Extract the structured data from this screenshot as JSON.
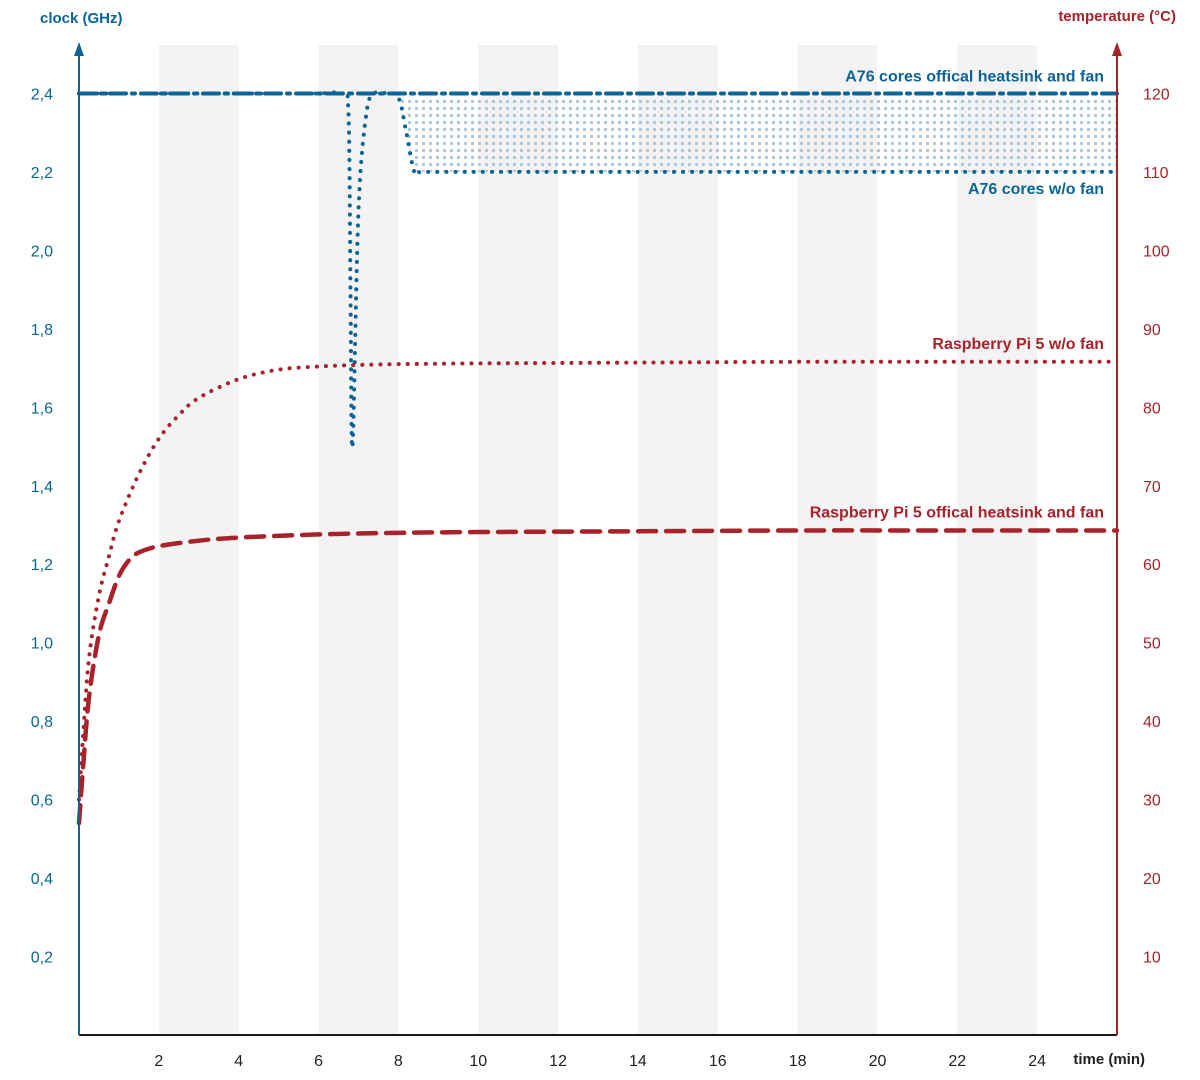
{
  "chart_data": {
    "type": "line",
    "grid": "alternating vertical bands",
    "colors": {
      "clock": "#0b6494",
      "clock_fill": "#a9c6d8",
      "temperature": "#a8222b",
      "band": "#f3f3f3"
    },
    "x_axis": {
      "label": "time (min)",
      "range": [
        0,
        26
      ],
      "ticks": [
        2,
        4,
        6,
        8,
        10,
        12,
        14,
        16,
        18,
        20,
        22,
        24
      ],
      "tick_labels": [
        "2",
        "4",
        "6",
        "8",
        "10",
        "12",
        "14",
        "16",
        "18",
        "20",
        "22",
        "24"
      ],
      "shaded_bands": [
        [
          2,
          4
        ],
        [
          6,
          8
        ],
        [
          10,
          12
        ],
        [
          14,
          16
        ],
        [
          18,
          20
        ],
        [
          22,
          24
        ]
      ]
    },
    "y_left": {
      "label": "clock (GHz)",
      "range": [
        0,
        2.6
      ],
      "ticks": [
        0.2,
        0.4,
        0.6,
        0.8,
        1.0,
        1.2,
        1.4,
        1.6,
        1.8,
        2.0,
        2.2,
        2.4
      ],
      "tick_labels": [
        "0,2",
        "0,4",
        "0,6",
        "0,8",
        "1,0",
        "1,2",
        "1,4",
        "1,6",
        "1,8",
        "2,0",
        "2,2",
        "2,4"
      ]
    },
    "y_right": {
      "label": "temperature (°C)",
      "range": [
        0,
        130
      ],
      "ticks": [
        10,
        20,
        30,
        40,
        50,
        60,
        70,
        80,
        90,
        100,
        110,
        120
      ],
      "tick_labels": [
        "10",
        "20",
        "30",
        "40",
        "50",
        "60",
        "70",
        "80",
        "90",
        "100",
        "110",
        "120"
      ]
    },
    "series": [
      {
        "name": "A76 cores offical heatsink and fan",
        "axis": "left",
        "style": "dash-dot",
        "x": [
          0,
          1,
          2,
          4,
          6,
          8,
          10,
          12,
          14,
          16,
          18,
          20,
          22,
          24,
          26
        ],
        "y": [
          2.4,
          2.4,
          2.4,
          2.4,
          2.4,
          2.4,
          2.4,
          2.4,
          2.4,
          2.4,
          2.4,
          2.4,
          2.4,
          2.4,
          2.4
        ]
      },
      {
        "name": "A76 cores w/o fan",
        "axis": "left",
        "style": "dotted",
        "x": [
          0,
          2,
          4,
          6,
          6.6,
          6.75,
          6.8,
          6.85,
          7.0,
          7.2,
          7.4,
          7.7,
          8.0,
          8.2,
          8.4,
          8.6,
          10,
          14,
          18,
          22,
          26
        ],
        "y": [
          2.4,
          2.4,
          2.4,
          2.4,
          2.4,
          2.35,
          1.9,
          1.5,
          2.1,
          2.35,
          2.4,
          2.4,
          2.39,
          2.3,
          2.2,
          2.2,
          2.2,
          2.2,
          2.2,
          2.2,
          2.2
        ]
      },
      {
        "name": "Raspberry Pi 5 w/o fan",
        "axis": "right",
        "style": "dotted",
        "x": [
          0,
          0.1,
          0.25,
          0.5,
          0.75,
          1,
          1.5,
          2,
          2.5,
          3,
          4,
          5,
          6,
          7,
          8,
          10,
          14,
          18,
          22,
          26
        ],
        "y": [
          30,
          38,
          48,
          56,
          61,
          65.5,
          71.5,
          76,
          79,
          81.2,
          83.6,
          84.8,
          85.2,
          85.4,
          85.5,
          85.6,
          85.7,
          85.8,
          85.8,
          85.8
        ]
      },
      {
        "name": "Raspberry Pi 5 offical heatsink and fan",
        "axis": "right",
        "style": "dashed",
        "x": [
          0,
          0.1,
          0.25,
          0.5,
          0.75,
          1,
          1.25,
          1.5,
          2,
          3,
          4,
          6,
          8,
          10,
          14,
          18,
          22,
          26
        ],
        "y": [
          27,
          34,
          43,
          51,
          55,
          58.5,
          60.5,
          61.5,
          62.3,
          63,
          63.4,
          63.8,
          64,
          64.1,
          64.2,
          64.3,
          64.3,
          64.3
        ]
      }
    ],
    "shaded_region": {
      "between": [
        "A76 cores offical heatsink and fan",
        "A76 cores w/o fan"
      ],
      "x_range": [
        8,
        26
      ]
    }
  }
}
